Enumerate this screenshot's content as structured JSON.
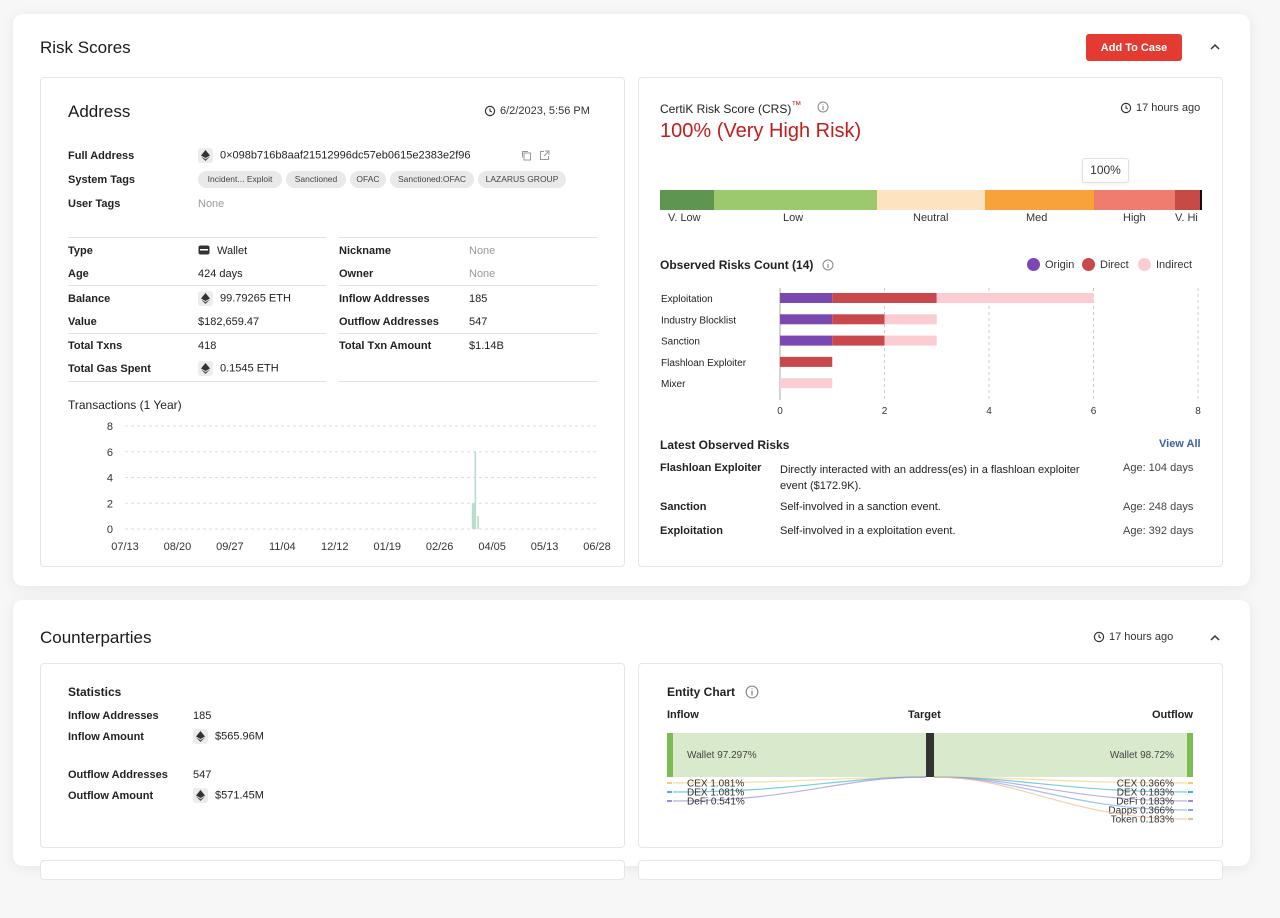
{
  "risk_section": {
    "title": "Risk Scores",
    "add_button": "Add To Case"
  },
  "address": {
    "title": "Address",
    "timestamp": "6/2/2023, 5:56 PM",
    "full_address_label": "Full Address",
    "full_address": "0×098b716b8aaf21512996dc57eb0615e2383e2f96",
    "system_tags_label": "System Tags",
    "system_tags": [
      "Incident... Exploit",
      "Sanctioned",
      "OFAC",
      "Sanctioned:OFAC",
      "LAZARUS GROUP"
    ],
    "user_tags_label": "User Tags",
    "user_tags": "None",
    "left_rows": [
      {
        "label": "Type",
        "value": "Wallet"
      },
      {
        "label": "Age",
        "value": "424 days"
      },
      {
        "label": "Balance",
        "value": "99.79265 ETH"
      },
      {
        "label": "Value",
        "value": "$182,659.47"
      },
      {
        "label": "Total Txns",
        "value": "418"
      },
      {
        "label": "Total Gas Spent",
        "value": "0.1545 ETH"
      }
    ],
    "right_rows": [
      {
        "label": "Nickname",
        "value": "None"
      },
      {
        "label": "Owner",
        "value": "None"
      },
      {
        "label": "Inflow Addresses",
        "value": "185"
      },
      {
        "label": "Outflow Addresses",
        "value": "547"
      },
      {
        "label": "Total Txn Amount",
        "value": "$1.14B"
      }
    ]
  },
  "chart_data": [
    {
      "type": "bar",
      "title": "Transactions (1 Year)",
      "categories": [
        "07/13",
        "08/20",
        "09/27",
        "11/04",
        "12/12",
        "01/19",
        "02/26",
        "04/05",
        "05/13",
        "06/28"
      ],
      "y_ticks": [
        0,
        2,
        4,
        6,
        8
      ],
      "ylim": [
        0,
        8
      ],
      "x": [
        "03/22",
        "03/23",
        "03/24",
        "03/26"
      ],
      "values": [
        2,
        2,
        6,
        1
      ],
      "color": "#b9dccb",
      "grid": true
    },
    {
      "type": "bar",
      "orientation": "horizontal",
      "stacked": true,
      "title": "Observed Risks Count (14)",
      "categories": [
        "Exploitation",
        "Industry Blocklist",
        "Sanction",
        "Flashloan Exploiter",
        "Mixer"
      ],
      "series": [
        {
          "name": "Origin",
          "values": [
            1,
            1,
            1,
            0,
            0
          ],
          "color": "#7b47b0"
        },
        {
          "name": "Direct",
          "values": [
            2,
            1,
            1,
            1,
            0
          ],
          "color": "#c9484c"
        },
        {
          "name": "Indirect",
          "values": [
            3,
            1,
            1,
            0,
            1
          ],
          "color": "#fbcdd3"
        }
      ],
      "x_ticks": [
        0,
        2,
        4,
        6,
        8
      ],
      "xlim": [
        0,
        8
      ],
      "legend": "top-right",
      "grid": true
    }
  ],
  "crs": {
    "title": "CertiK Risk Score (CRS)",
    "tm": "™",
    "updated": "17 hours ago",
    "score": "100% (Very High Risk)",
    "marker": "100%",
    "score_value": 100,
    "scale_labels": [
      "V. Low",
      "Low",
      "Neutral",
      "Med",
      "High",
      "V. Hi"
    ],
    "scale_colors": [
      "#5e9550",
      "#9cc96d",
      "#fde3c0",
      "#f7a338",
      "#ef7c6e",
      "#c74a46"
    ]
  },
  "latest": {
    "title": "Latest Observed Risks",
    "view_all": "View All",
    "rows": [
      {
        "name": "Flashloan Exploiter",
        "desc": "Directly interacted with an address(es) in a flashloan exploiter event ($172.9K).",
        "age": "Age: 104 days"
      },
      {
        "name": "Sanction",
        "desc": "Self-involved in a sanction event.",
        "age": "Age: 248 days"
      },
      {
        "name": "Exploitation",
        "desc": "Self-involved in a exploitation event.",
        "age": "Age: 392 days"
      }
    ]
  },
  "counterparties": {
    "title": "Counterparties",
    "updated": "17 hours ago",
    "stats_title": "Statistics",
    "stats": [
      {
        "label": "Inflow Addresses",
        "value": "185"
      },
      {
        "label": "Inflow Amount",
        "value": "$565.96M"
      },
      {
        "label": "Outflow Addresses",
        "value": "547"
      },
      {
        "label": "Outflow Amount",
        "value": "$571.45M"
      }
    ]
  },
  "entity_chart": {
    "title": "Entity Chart",
    "inflow_label": "Inflow",
    "target_label": "Target",
    "outflow_label": "Outflow",
    "inflow_main": "Wallet 97.297%",
    "outflow_main": "Wallet 98.72%",
    "inflow_minor": [
      {
        "label": "CEX 1.081%",
        "color": "#f2cf7a"
      },
      {
        "label": "DEX 1.081%",
        "color": "#3fb6d3"
      },
      {
        "label": "DeFi 0.541%",
        "color": "#9c8fd9"
      }
    ],
    "outflow_minor": [
      {
        "label": "CEX 0.366%",
        "color": "#f2cf7a"
      },
      {
        "label": "DEX 0.183%",
        "color": "#3fb6d3"
      },
      {
        "label": "DeFi 0.183%",
        "color": "#9c8fd9"
      },
      {
        "label": "Dapps 0.366%",
        "color": "#7fa7e8"
      },
      {
        "label": "Token 0.183%",
        "color": "#f5b98a"
      }
    ]
  }
}
